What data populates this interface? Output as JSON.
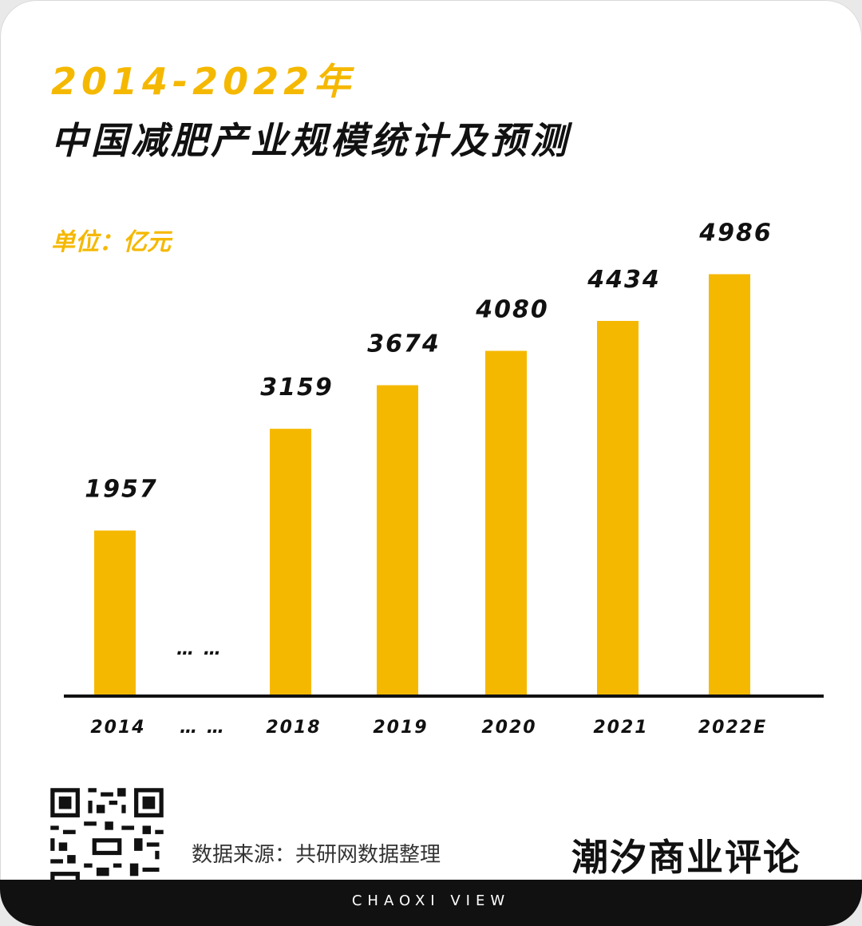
{
  "header": {
    "title_years": "2014-2022年",
    "title_main": "中国减肥产业规模统计及预测",
    "unit": "单位：亿元"
  },
  "chart_data": {
    "type": "bar",
    "title": "2014-2022年 中国减肥产业规模统计及预测",
    "ylabel": "单位：亿元",
    "categories": [
      "2014",
      "… …",
      "2018",
      "2019",
      "2020",
      "2021",
      "2022E"
    ],
    "values": [
      1957,
      null,
      3159,
      3674,
      4080,
      4434,
      4986
    ],
    "value_labels": [
      "1957",
      "… …",
      "3159",
      "3674",
      "4080",
      "4434",
      "4986"
    ],
    "bar_color": "#f5b800",
    "grid": false,
    "legend": "none"
  },
  "footer": {
    "source": "数据来源：共研网数据整理",
    "brand": "潮汐商业评论",
    "tagline": "CHAOXI VIEW"
  }
}
